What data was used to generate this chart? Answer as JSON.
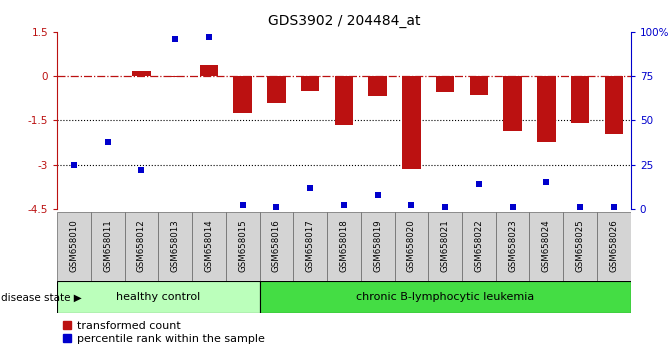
{
  "title": "GDS3902 / 204484_at",
  "samples": [
    "GSM658010",
    "GSM658011",
    "GSM658012",
    "GSM658013",
    "GSM658014",
    "GSM658015",
    "GSM658016",
    "GSM658017",
    "GSM658018",
    "GSM658019",
    "GSM658020",
    "GSM658021",
    "GSM658022",
    "GSM658023",
    "GSM658024",
    "GSM658025",
    "GSM658026"
  ],
  "red_values": [
    0.02,
    0.01,
    0.18,
    -0.02,
    0.38,
    -1.25,
    -0.9,
    -0.5,
    -1.65,
    -0.68,
    -3.15,
    -0.55,
    -0.65,
    -1.85,
    -2.25,
    -1.6,
    -1.95
  ],
  "blue_values_pct": [
    25,
    38,
    22,
    96,
    97,
    2,
    1,
    12,
    2,
    8,
    2,
    1,
    14,
    1,
    15,
    1,
    1
  ],
  "healthy_count": 6,
  "ylim_left": [
    -4.5,
    1.5
  ],
  "ylim_right": [
    0,
    100
  ],
  "yticks_left": [
    1.5,
    0.0,
    -1.5,
    -3.0,
    -4.5
  ],
  "ytick_labels_left": [
    "1.5",
    "0",
    "-1.5",
    "-3",
    "-4.5"
  ],
  "yticks_right": [
    100,
    75,
    50,
    25,
    0
  ],
  "ytick_labels_right": [
    "100%",
    "75",
    "50",
    "25",
    "0"
  ],
  "hline_y": 0.0,
  "dotted_hlines": [
    -1.5,
    -3.0
  ],
  "bar_color": "#bb1111",
  "dot_color": "#0000cc",
  "healthy_fill": "#bbffbb",
  "leukemia_fill": "#44dd44",
  "healthy_label": "healthy control",
  "leukemia_label": "chronic B-lymphocytic leukemia",
  "disease_state_label": "disease state",
  "legend_red": "transformed count",
  "legend_blue": "percentile rank within the sample",
  "bar_width": 0.55
}
